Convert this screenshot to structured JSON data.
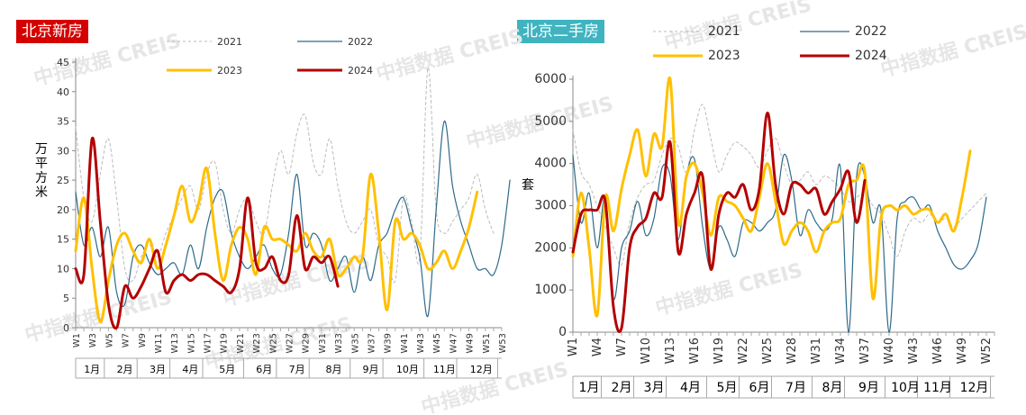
{
  "colors": {
    "s2021": "#bbbbbb",
    "s2022": "#2e6a8a",
    "s2023": "#ffc000",
    "s2024": "#b30000",
    "left_title_bg": "#d40000",
    "right_title_bg": "#3fb4c0"
  },
  "watermark": "中指数据 CREIS",
  "chart_data": [
    {
      "type": "line",
      "title": "北京新房",
      "ylabel": "万平方米",
      "ylim": [
        0,
        45
      ],
      "yticks": [
        0,
        5,
        10,
        15,
        20,
        25,
        30,
        35,
        40,
        45
      ],
      "x_tick_labels": [
        "W1",
        "W3",
        "W5",
        "W7",
        "W9",
        "W11",
        "W13",
        "W15",
        "W17",
        "W19",
        "W21",
        "W23",
        "W25",
        "W27",
        "W29",
        "W31",
        "W33",
        "W35",
        "W37",
        "W39",
        "W41",
        "W43",
        "W45",
        "W47",
        "W49",
        "W51",
        "W53"
      ],
      "months": [
        "1月",
        "2月",
        "3月",
        "4月",
        "5月",
        "6月",
        "7月",
        "8月",
        "9月",
        "10月",
        "11月",
        "12月"
      ],
      "month_bounds": [
        1,
        5,
        9,
        13,
        17,
        22,
        26,
        30,
        35,
        39,
        44,
        48,
        53
      ],
      "series": [
        {
          "name": "2021",
          "style": "dotted",
          "values": [
            34,
            22,
            18,
            26,
            32,
            22,
            10,
            8,
            12,
            14,
            12,
            16,
            19,
            22,
            24,
            20,
            26,
            28,
            20,
            16,
            20,
            22,
            18,
            16,
            24,
            30,
            26,
            33,
            36,
            28,
            26,
            32,
            24,
            18,
            16,
            18,
            20,
            14,
            12,
            8,
            22,
            18,
            12,
            44,
            20,
            16,
            18,
            20,
            22,
            26,
            20,
            16
          ]
        },
        {
          "name": "2022",
          "style": "thin",
          "values": [
            23,
            14,
            17,
            12,
            17,
            6,
            4,
            12,
            14,
            11,
            9,
            10,
            11,
            9,
            14,
            10,
            17,
            22,
            23,
            16,
            12,
            10,
            12,
            14,
            10,
            9,
            16,
            26,
            14,
            16,
            14,
            8,
            10,
            12,
            6,
            12,
            8,
            14,
            16,
            20,
            22,
            17,
            12,
            2,
            20,
            35,
            24,
            18,
            14,
            10,
            10,
            9,
            14,
            25
          ]
        },
        {
          "name": "2023",
          "style": "thick",
          "values": [
            13,
            22,
            10,
            1,
            8,
            14,
            16,
            13,
            11,
            15,
            10,
            14,
            19,
            24,
            18,
            21,
            27,
            16,
            8,
            14,
            17,
            15,
            9,
            17,
            15,
            15,
            14,
            13,
            16,
            13,
            12,
            15,
            9,
            10,
            12,
            12,
            26,
            16,
            3,
            18,
            15,
            16,
            14,
            10,
            11,
            13,
            10,
            13,
            17,
            23
          ]
        },
        {
          "name": "2024",
          "style": "thick",
          "values": [
            10,
            9,
            32,
            18,
            4,
            0,
            7,
            5,
            7,
            10,
            13,
            6,
            8,
            9,
            8,
            9,
            9,
            8,
            7,
            6,
            10,
            22,
            11,
            10,
            12,
            8,
            9,
            19,
            10,
            12,
            11,
            12,
            7
          ]
        }
      ],
      "legend": {
        "placement": "top",
        "entries": [
          "2021",
          "2022",
          "2023",
          "2024"
        ]
      }
    },
    {
      "type": "line",
      "title": "北京二手房",
      "ylabel": "套",
      "ylim": [
        0,
        6000
      ],
      "yticks": [
        0,
        1000,
        2000,
        3000,
        4000,
        5000,
        6000
      ],
      "x_tick_labels": [
        "W1",
        "W4",
        "W7",
        "W10",
        "W13",
        "W16",
        "W19",
        "W22",
        "W25",
        "W28",
        "W31",
        "W34",
        "W37",
        "W40",
        "W43",
        "W46",
        "W49",
        "W52"
      ],
      "months": [
        "1月",
        "2月",
        "3月",
        "4月",
        "5月",
        "6月",
        "7月",
        "8月",
        "9月",
        "10月",
        "11月",
        "12月"
      ],
      "month_bounds": [
        1,
        5,
        9,
        13,
        18,
        22,
        26,
        31,
        35,
        40,
        44,
        48,
        53
      ],
      "series": [
        {
          "name": "2021",
          "style": "dotted",
          "values": [
            4800,
            3800,
            3500,
            3000,
            2500,
            2000,
            1600,
            2600,
            3200,
            3500,
            3600,
            4200,
            4600,
            4400,
            3800,
            4800,
            5400,
            4600,
            3800,
            4200,
            4500,
            4400,
            4200,
            3900,
            4300,
            4600,
            4000,
            3500,
            3600,
            3800,
            3500,
            3700,
            3600,
            3400,
            3100,
            3200,
            3300,
            3000,
            2800,
            2300,
            1800,
            2400,
            2700,
            2600,
            2800,
            2600,
            2700,
            2500,
            2700,
            2900,
            3100,
            3300
          ]
        },
        {
          "name": "2022",
          "style": "thin",
          "values": [
            4200,
            2600,
            3300,
            2000,
            3200,
            800,
            2000,
            2400,
            3100,
            2300,
            2700,
            3900,
            3700,
            2200,
            3700,
            4100,
            2500,
            1500,
            2500,
            2200,
            1800,
            2600,
            2600,
            2400,
            2600,
            2900,
            4200,
            3600,
            2300,
            2900,
            2600,
            2400,
            2700,
            3900,
            0,
            3700,
            3700,
            2600,
            2900,
            0,
            2700,
            3100,
            3200,
            2900,
            3000,
            2400,
            2000,
            1600,
            1500,
            1700,
            2100,
            3200
          ]
        },
        {
          "name": "2023",
          "style": "thick",
          "values": [
            1800,
            3300,
            2000,
            400,
            3200,
            2400,
            3400,
            4200,
            4800,
            3700,
            4700,
            4400,
            6000,
            2600,
            3700,
            4000,
            3300,
            2300,
            3200,
            3100,
            3000,
            2700,
            2400,
            3200,
            4000,
            3100,
            2100,
            2400,
            2600,
            2400,
            1900,
            2400,
            2600,
            2700,
            3500,
            3600,
            3800,
            800,
            2700,
            3000,
            2900,
            3000,
            2800,
            2900,
            2900,
            2600,
            2800,
            2400,
            3200,
            4300
          ]
        },
        {
          "name": "2024",
          "style": "thick",
          "values": [
            1900,
            2800,
            2900,
            2900,
            3100,
            600,
            100,
            2000,
            2500,
            2700,
            3300,
            3200,
            4500,
            1900,
            2800,
            3300,
            3700,
            1500,
            2800,
            3300,
            3200,
            3500,
            2900,
            3400,
            5200,
            3500,
            2800,
            3500,
            3500,
            3300,
            3400,
            2800,
            3100,
            3400,
            3800,
            2600,
            3600
          ]
        }
      ],
      "legend": {
        "placement": "top",
        "entries": [
          "2021",
          "2022",
          "2023",
          "2024"
        ]
      }
    }
  ]
}
